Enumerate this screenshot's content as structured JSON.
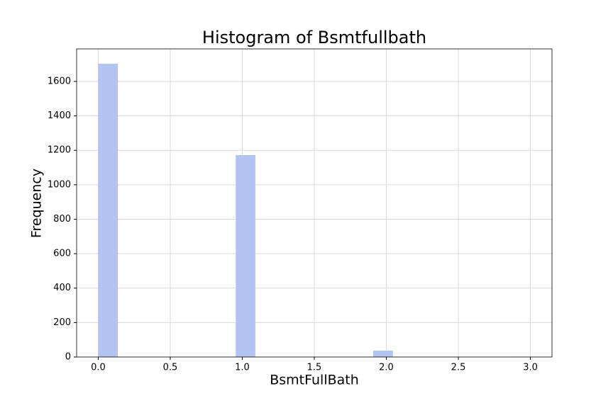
{
  "chart_data": {
    "type": "histogram",
    "title": "Histogram of Bsmtfullbath",
    "x_label": "BsmtFullBath",
    "y_label": "Frequency",
    "bins": [
      0,
      0.13636,
      0.27273,
      0.40909,
      0.54545,
      0.68182,
      0.81818,
      0.95455,
      1.09091,
      1.22727,
      1.36364,
      1.5,
      1.63636,
      1.77273,
      1.90909,
      2.04545,
      2.18182,
      2.31818,
      2.45455,
      2.59091,
      2.72727,
      2.86364,
      3.0
    ],
    "values": [
      1703,
      0,
      0,
      0,
      0,
      0,
      0,
      1172,
      0,
      0,
      0,
      0,
      0,
      0,
      37,
      0,
      0,
      0,
      0,
      0,
      0,
      2
    ],
    "color": "#b3c3f2",
    "xlim": [
      -0.15,
      3.15
    ],
    "xticks": [
      {
        "value": 0,
        "label": "0.0"
      },
      0.5,
      {
        "value": 1,
        "label": "1.0"
      },
      1.5,
      {
        "value": 2,
        "label": "2.0"
      },
      2.5,
      {
        "value": 3,
        "label": "3.0"
      }
    ],
    "ylim": [
      0,
      1789
    ],
    "yticks": [
      0,
      200,
      400,
      600,
      800,
      1000,
      1200,
      1400,
      1600
    ],
    "grid": true
  }
}
